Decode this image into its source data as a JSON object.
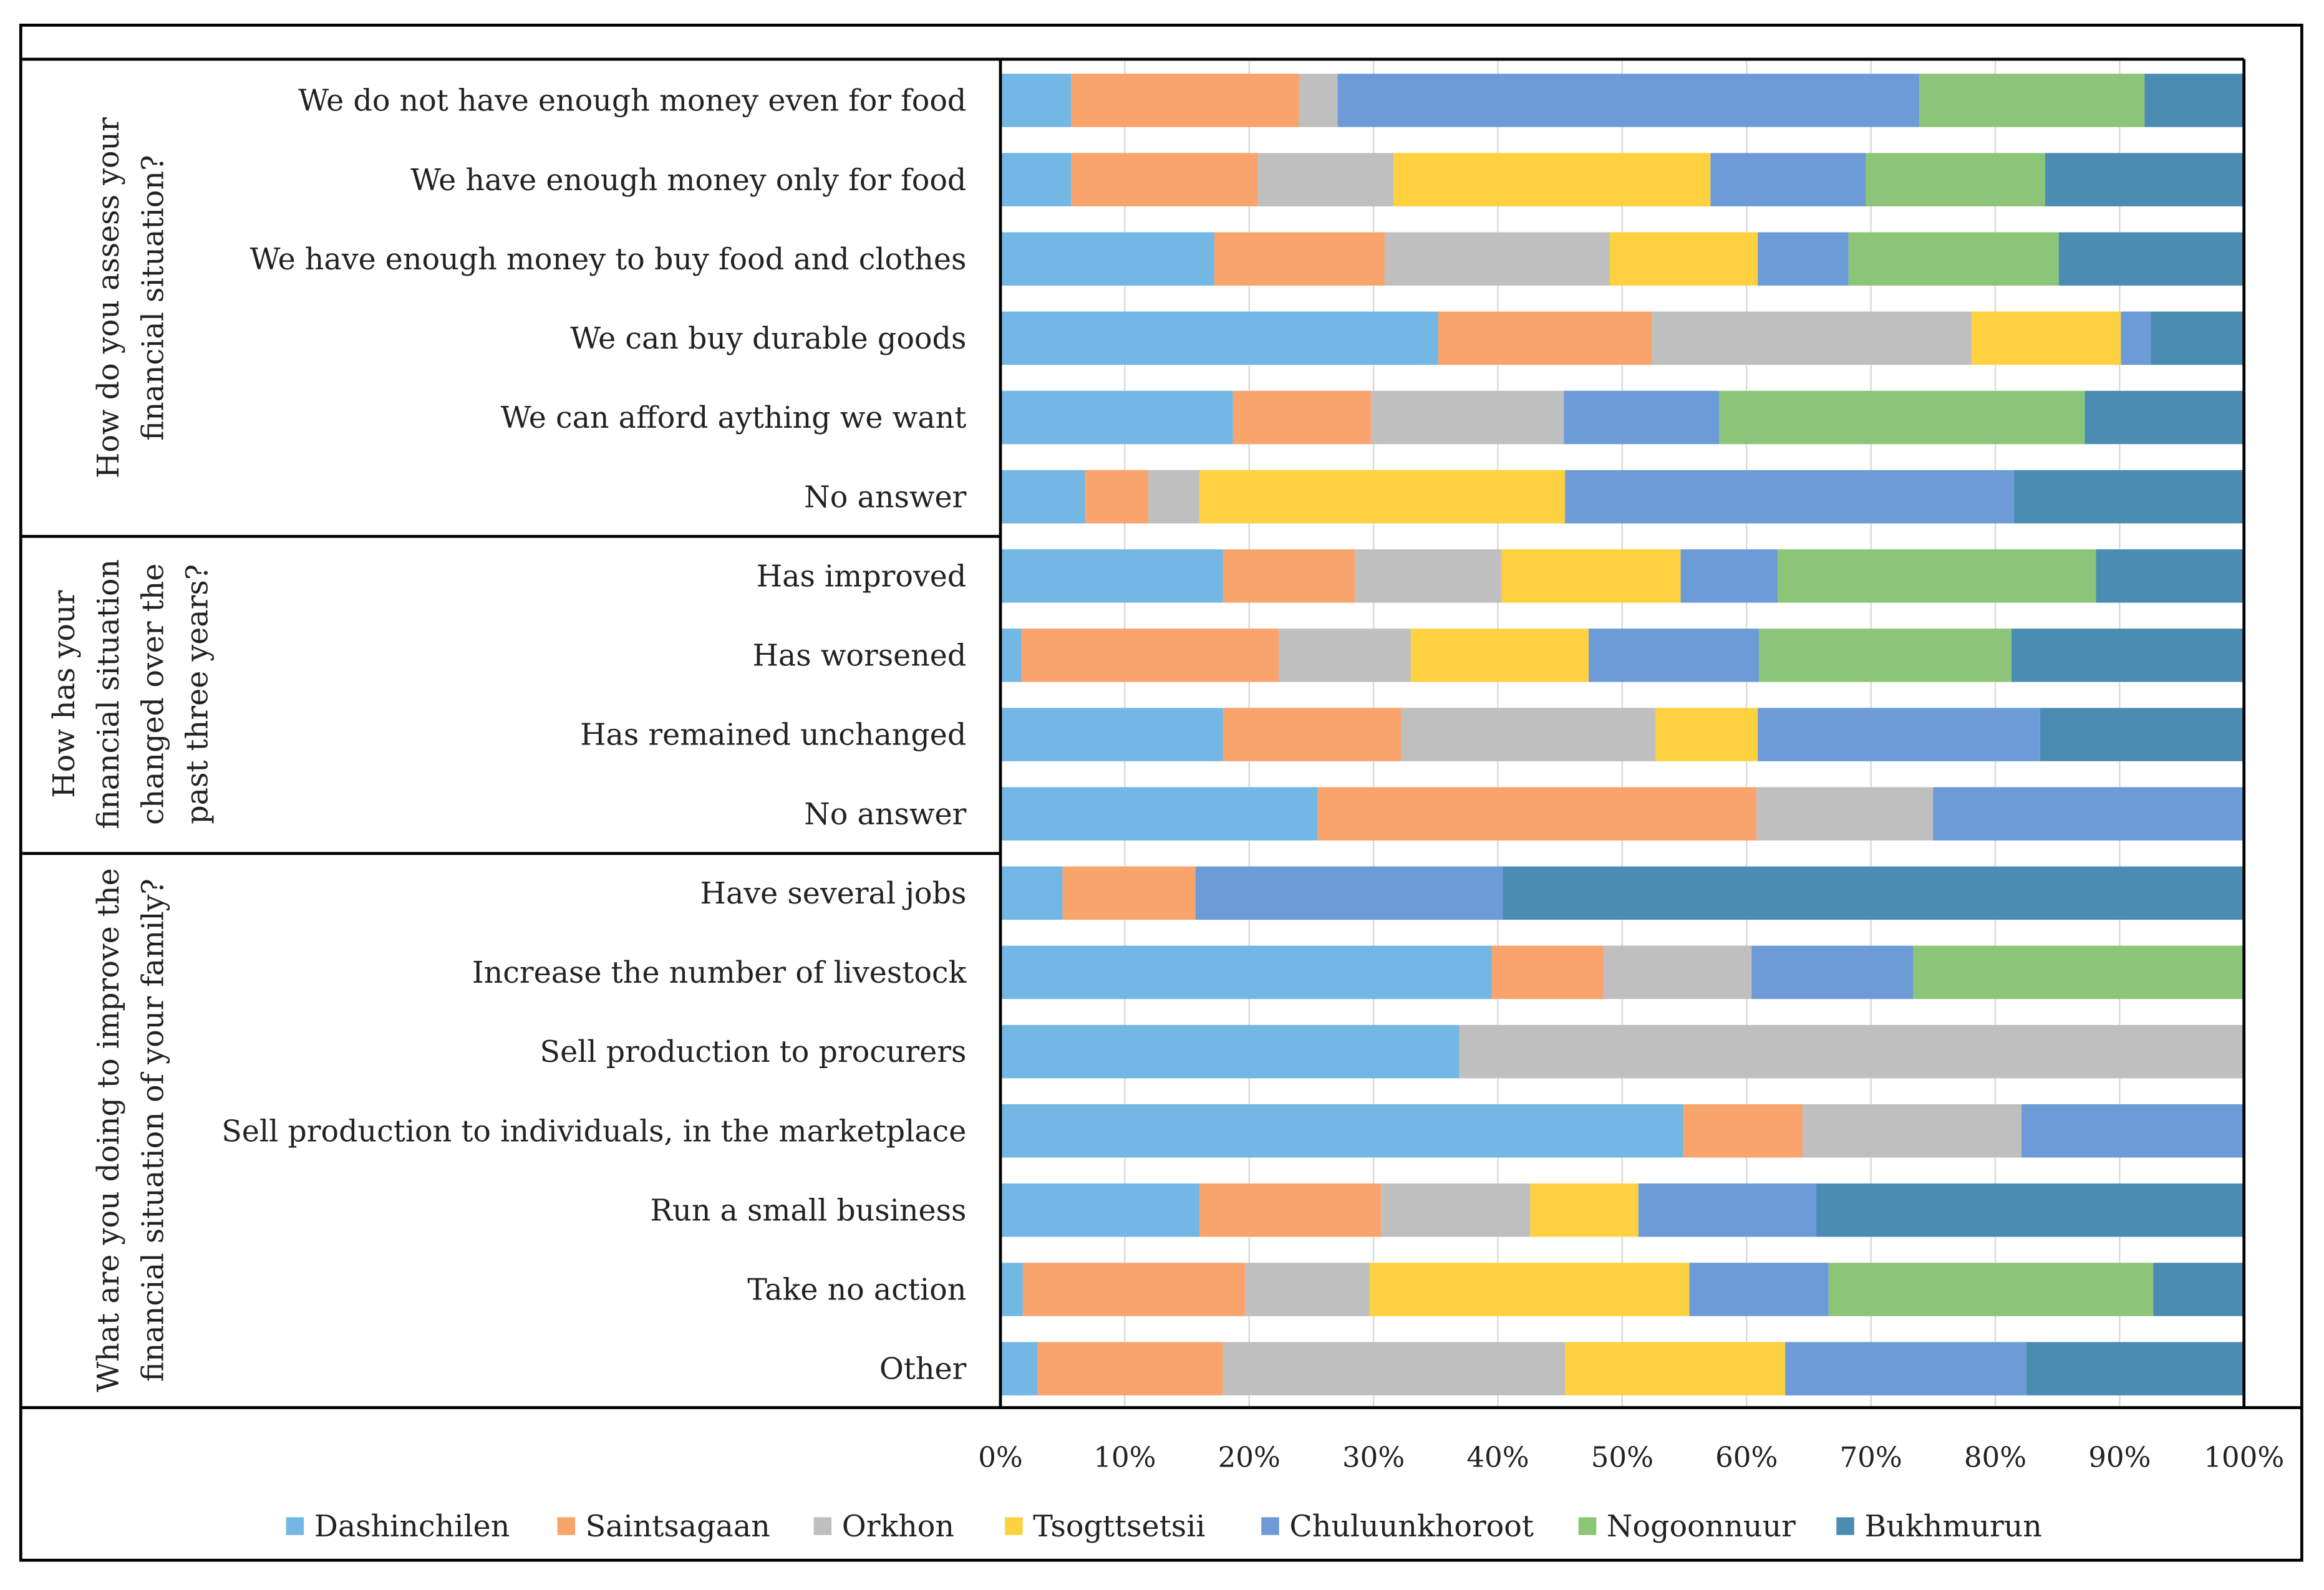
{
  "chart_data": {
    "type": "bar",
    "orientation": "horizontal",
    "stacked": "percent",
    "xlim": [
      0,
      100
    ],
    "x_ticks": [
      "0%",
      "10%",
      "20%",
      "30%",
      "40%",
      "50%",
      "60%",
      "70%",
      "80%",
      "90%",
      "100%"
    ],
    "grid": true,
    "legend_position": "bottom",
    "series_names": [
      "Dashinchilen",
      "Saintsagaan",
      "Orkhon",
      "Tsogttsetsii",
      "Chuluunkhoroot",
      "Nogoonnuur",
      "Bukhmurun"
    ],
    "colors": [
      "#73B7E4",
      "#F9A46C",
      "#BFBFBF",
      "#FDD13F",
      "#6C9BD8",
      "#8CC577",
      "#4B8CB3"
    ],
    "groups": [
      {
        "label_lines": [
          "How do you assess your",
          "financial situation?"
        ],
        "rows": [
          {
            "label": "We do not have enough money even for food",
            "values": [
              5.7,
              18.3,
              3.1,
              0,
              46.8,
              18.1,
              8.0
            ]
          },
          {
            "label": "We have enough money only for food",
            "values": [
              5.7,
              15.0,
              10.9,
              25.5,
              12.5,
              14.4,
              16.0
            ]
          },
          {
            "label": "We have enough money to buy food and clothes",
            "values": [
              17.2,
              13.7,
              18.1,
              11.9,
              7.3,
              16.9,
              14.9
            ]
          },
          {
            "label": "We can buy durable goods",
            "values": [
              35.2,
              17.2,
              25.7,
              12.0,
              2.4,
              0,
              7.5
            ]
          },
          {
            "label": "We can afford aything we want",
            "values": [
              18.7,
              11.1,
              15.5,
              0,
              12.5,
              29.4,
              12.8
            ]
          },
          {
            "label": "No answer",
            "values": [
              6.8,
              5.1,
              4.1,
              29.4,
              36.1,
              0,
              18.5
            ]
          }
        ]
      },
      {
        "label_lines": [
          "How has your",
          "financial situation",
          "changed over the",
          "past three years?"
        ],
        "rows": [
          {
            "label": "Has improved",
            "values": [
              17.9,
              10.6,
              11.8,
              14.4,
              7.8,
              25.6,
              11.9
            ]
          },
          {
            "label": "Has worsened",
            "values": [
              1.7,
              20.7,
              10.6,
              14.3,
              13.7,
              20.3,
              18.7
            ]
          },
          {
            "label": "Has remained unchanged",
            "values": [
              17.9,
              14.3,
              20.5,
              8.2,
              22.7,
              0,
              16.4
            ]
          },
          {
            "label": "No answer",
            "values": [
              25.5,
              35.3,
              14.2,
              0,
              25.0,
              0,
              0
            ]
          }
        ]
      },
      {
        "label_lines": [
          "What are you doing to improve the",
          "financial situation of your family?"
        ],
        "rows": [
          {
            "label": "Have several jobs",
            "values": [
              5.0,
              10.7,
              0,
              0,
              24.7,
              0,
              59.6
            ]
          },
          {
            "label": "Increase the number of livestock",
            "values": [
              39.5,
              9.0,
              11.9,
              0,
              13.0,
              26.6,
              0
            ]
          },
          {
            "label": "Sell production to procurers",
            "values": [
              36.9,
              0,
              63.1,
              0,
              0,
              0,
              0
            ]
          },
          {
            "label": "Sell production to individuals, in the marketplace",
            "values": [
              54.9,
              9.6,
              17.6,
              0,
              17.9,
              0,
              0
            ]
          },
          {
            "label": "Run a small business",
            "values": [
              16.0,
              14.6,
              12.0,
              8.7,
              14.3,
              0,
              34.4
            ]
          },
          {
            "label": "Take no action",
            "values": [
              1.8,
              17.9,
              10.0,
              25.7,
              11.2,
              26.1,
              7.3
            ]
          },
          {
            "label": "Other",
            "values": [
              3.0,
              14.9,
              27.5,
              17.7,
              19.4,
              0,
              17.5
            ]
          }
        ]
      }
    ]
  }
}
